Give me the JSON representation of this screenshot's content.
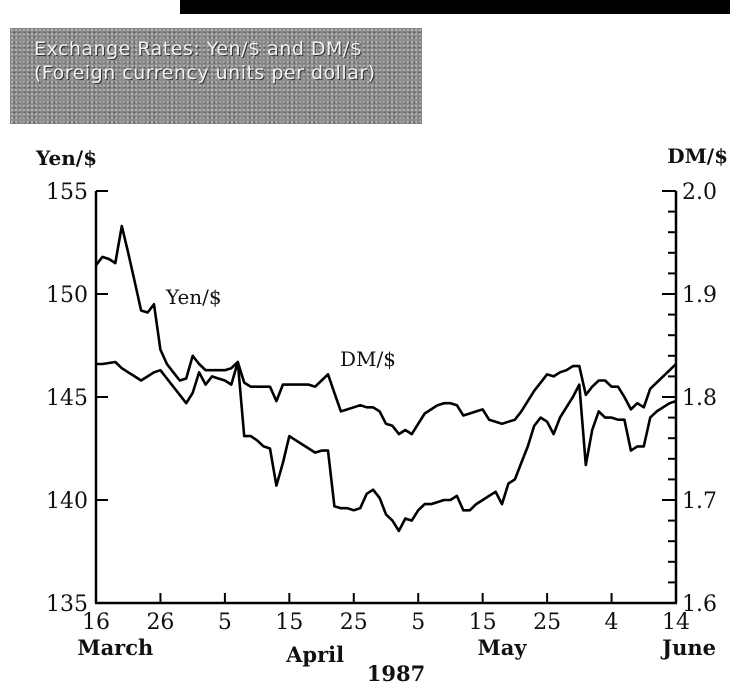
{
  "header_bar": {
    "color": "#000000"
  },
  "title_box": {
    "line1": "Exchange Rates: Yen/$ and DM/$",
    "line2": "(Foreign currency units per dollar)",
    "color": "#8c8c8c"
  },
  "chart_data": {
    "type": "line",
    "title": "Exchange Rates: Yen/$ and DM/$",
    "subtitle": "(Foreign currency units per dollar)",
    "ylabel_left": "Yen/$",
    "ylabel_right": "DM/$",
    "ylim_left": [
      135,
      155
    ],
    "ylim_right": [
      1.6,
      2.0
    ],
    "yticks_left": [
      135,
      140,
      145,
      150,
      155
    ],
    "yticks_right": [
      1.6,
      1.7,
      1.8,
      1.9,
      2.0
    ],
    "y_minor_step_right": 0.02,
    "x_ticks": [
      {
        "label": "16",
        "day": 0
      },
      {
        "label": "26",
        "day": 10
      },
      {
        "label": "5",
        "day": 20
      },
      {
        "label": "15",
        "day": 30
      },
      {
        "label": "25",
        "day": 40
      },
      {
        "label": "5",
        "day": 50
      },
      {
        "label": "15",
        "day": 60
      },
      {
        "label": "25",
        "day": 70
      },
      {
        "label": "4",
        "day": 80
      },
      {
        "label": "14",
        "day": 90
      }
    ],
    "x_range": [
      0,
      90
    ],
    "months": [
      {
        "label": "March",
        "day": 3
      },
      {
        "label": "April",
        "day": 34
      },
      {
        "label": "May",
        "day": 63
      },
      {
        "label": "June",
        "day": 90
      }
    ],
    "year_label": "1987",
    "series": [
      {
        "name": "Yen/$",
        "axis": "left",
        "points": [
          [
            0,
            151.4
          ],
          [
            1,
            151.8
          ],
          [
            2,
            151.7
          ],
          [
            3,
            151.5
          ],
          [
            4,
            153.3
          ],
          [
            5,
            152.0
          ],
          [
            6,
            150.6
          ],
          [
            7,
            149.2
          ],
          [
            8,
            149.1
          ],
          [
            9,
            149.5
          ],
          [
            10,
            147.3
          ],
          [
            11,
            146.6
          ],
          [
            12,
            146.2
          ],
          [
            13,
            145.8
          ],
          [
            14,
            145.9
          ],
          [
            15,
            147.0
          ],
          [
            16,
            146.6
          ],
          [
            17,
            146.3
          ],
          [
            18,
            146.3
          ],
          [
            19,
            146.3
          ],
          [
            20,
            146.3
          ],
          [
            21,
            146.4
          ],
          [
            22,
            146.7
          ],
          [
            23,
            143.1
          ],
          [
            24,
            143.1
          ],
          [
            25,
            142.9
          ],
          [
            26,
            142.6
          ],
          [
            27,
            142.5
          ],
          [
            28,
            140.7
          ],
          [
            29,
            141.8
          ],
          [
            30,
            143.1
          ],
          [
            31,
            142.9
          ],
          [
            32,
            142.7
          ],
          [
            33,
            142.5
          ],
          [
            34,
            142.3
          ],
          [
            35,
            142.4
          ],
          [
            36,
            142.4
          ],
          [
            37,
            139.7
          ],
          [
            38,
            139.6
          ],
          [
            39,
            139.6
          ],
          [
            40,
            139.5
          ],
          [
            41,
            139.6
          ],
          [
            42,
            140.3
          ],
          [
            43,
            140.5
          ],
          [
            44,
            140.1
          ],
          [
            45,
            139.3
          ],
          [
            46,
            139.0
          ],
          [
            47,
            138.5
          ],
          [
            48,
            139.1
          ],
          [
            49,
            139.0
          ],
          [
            50,
            139.5
          ],
          [
            51,
            139.8
          ],
          [
            52,
            139.8
          ],
          [
            53,
            139.9
          ],
          [
            54,
            140.0
          ],
          [
            55,
            140.0
          ],
          [
            56,
            140.2
          ],
          [
            57,
            139.5
          ],
          [
            58,
            139.5
          ],
          [
            59,
            139.8
          ],
          [
            60,
            140.0
          ],
          [
            61,
            140.2
          ],
          [
            62,
            140.4
          ],
          [
            63,
            139.8
          ],
          [
            64,
            140.8
          ],
          [
            65,
            141.0
          ],
          [
            66,
            141.8
          ],
          [
            67,
            142.6
          ],
          [
            68,
            143.6
          ],
          [
            69,
            144.0
          ],
          [
            70,
            143.8
          ],
          [
            71,
            143.2
          ],
          [
            72,
            144.0
          ],
          [
            73,
            144.5
          ],
          [
            74,
            145.0
          ],
          [
            75,
            145.6
          ],
          [
            76,
            141.7
          ],
          [
            77,
            143.4
          ],
          [
            78,
            144.3
          ],
          [
            79,
            144.0
          ],
          [
            80,
            144.0
          ],
          [
            81,
            143.9
          ],
          [
            82,
            143.9
          ],
          [
            83,
            142.4
          ],
          [
            84,
            142.6
          ],
          [
            85,
            142.6
          ],
          [
            86,
            144.0
          ],
          [
            87,
            144.3
          ],
          [
            88,
            144.5
          ],
          [
            89,
            144.7
          ],
          [
            90,
            144.8
          ]
        ]
      },
      {
        "name": "DM/$",
        "axis": "right",
        "points": [
          [
            0,
            1.832
          ],
          [
            1,
            1.832
          ],
          [
            2,
            1.833
          ],
          [
            3,
            1.834
          ],
          [
            4,
            1.828
          ],
          [
            5,
            1.824
          ],
          [
            6,
            1.82
          ],
          [
            7,
            1.816
          ],
          [
            8,
            1.82
          ],
          [
            9,
            1.824
          ],
          [
            10,
            1.826
          ],
          [
            11,
            1.818
          ],
          [
            12,
            1.81
          ],
          [
            13,
            1.802
          ],
          [
            14,
            1.794
          ],
          [
            15,
            1.804
          ],
          [
            16,
            1.824
          ],
          [
            17,
            1.812
          ],
          [
            18,
            1.82
          ],
          [
            19,
            1.818
          ],
          [
            20,
            1.816
          ],
          [
            21,
            1.812
          ],
          [
            22,
            1.834
          ],
          [
            23,
            1.814
          ],
          [
            24,
            1.81
          ],
          [
            25,
            1.81
          ],
          [
            26,
            1.81
          ],
          [
            27,
            1.81
          ],
          [
            28,
            1.796
          ],
          [
            29,
            1.812
          ],
          [
            30,
            1.812
          ],
          [
            31,
            1.812
          ],
          [
            32,
            1.812
          ],
          [
            33,
            1.812
          ],
          [
            34,
            1.81
          ],
          [
            35,
            1.816
          ],
          [
            36,
            1.822
          ],
          [
            37,
            1.804
          ],
          [
            38,
            1.786
          ],
          [
            39,
            1.788
          ],
          [
            40,
            1.79
          ],
          [
            41,
            1.792
          ],
          [
            42,
            1.79
          ],
          [
            43,
            1.79
          ],
          [
            44,
            1.786
          ],
          [
            45,
            1.774
          ],
          [
            46,
            1.772
          ],
          [
            47,
            1.764
          ],
          [
            48,
            1.768
          ],
          [
            49,
            1.764
          ],
          [
            50,
            1.774
          ],
          [
            51,
            1.784
          ],
          [
            52,
            1.788
          ],
          [
            53,
            1.792
          ],
          [
            54,
            1.794
          ],
          [
            55,
            1.794
          ],
          [
            56,
            1.792
          ],
          [
            57,
            1.782
          ],
          [
            58,
            1.784
          ],
          [
            59,
            1.786
          ],
          [
            60,
            1.788
          ],
          [
            61,
            1.778
          ],
          [
            62,
            1.776
          ],
          [
            63,
            1.774
          ],
          [
            64,
            1.776
          ],
          [
            65,
            1.778
          ],
          [
            66,
            1.786
          ],
          [
            67,
            1.796
          ],
          [
            68,
            1.806
          ],
          [
            69,
            1.814
          ],
          [
            70,
            1.822
          ],
          [
            71,
            1.82
          ],
          [
            72,
            1.824
          ],
          [
            73,
            1.826
          ],
          [
            74,
            1.83
          ],
          [
            75,
            1.83
          ],
          [
            76,
            1.802
          ],
          [
            77,
            1.81
          ],
          [
            78,
            1.816
          ],
          [
            79,
            1.816
          ],
          [
            80,
            1.81
          ],
          [
            81,
            1.81
          ],
          [
            82,
            1.8
          ],
          [
            83,
            1.788
          ],
          [
            84,
            1.794
          ],
          [
            85,
            1.79
          ],
          [
            86,
            1.808
          ],
          [
            87,
            1.814
          ],
          [
            88,
            1.82
          ],
          [
            89,
            1.826
          ],
          [
            90,
            1.832
          ]
        ]
      }
    ],
    "annotations": [
      {
        "text": "Yen/$",
        "series": "Yen/$"
      },
      {
        "text": "DM/$",
        "series": "DM/$"
      }
    ]
  }
}
